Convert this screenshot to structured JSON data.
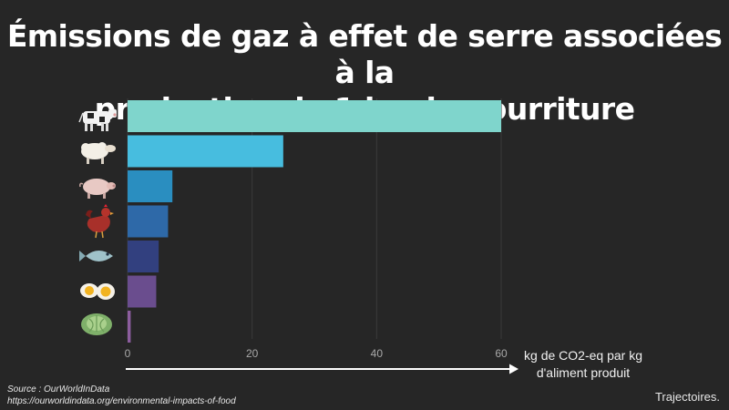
{
  "title_line1": "Émissions de gaz à effet de serre associées à la",
  "title_line2": "production de 1 kg de nourriture",
  "axis_label_line1": "kg de CO2-eq par kg",
  "axis_label_line2": "d'aliment produit",
  "source_line1": "Source : OurWorldInData",
  "source_line2": "https://ourworldindata.org/environmental-impacts-of-food",
  "brand": "Trajectoires.",
  "chart_data": {
    "type": "bar",
    "orientation": "horizontal",
    "categories": [
      "cow-icon",
      "sheep-icon",
      "pig-icon",
      "chicken-icon",
      "fish-icon",
      "egg-icon",
      "cabbage-icon"
    ],
    "values": [
      60,
      25,
      7.2,
      6.5,
      5.0,
      4.6,
      0.5
    ],
    "colors": [
      "#7fd5cc",
      "#47bddf",
      "#2a8ec0",
      "#2e69a8",
      "#32407f",
      "#6a4d8e",
      "#8c5d9e"
    ],
    "xticks": [
      0,
      20,
      40,
      60
    ],
    "xlim": [
      0,
      60
    ],
    "grid": true,
    "xlabel": "kg de CO2-eq par kg d'aliment produit"
  }
}
